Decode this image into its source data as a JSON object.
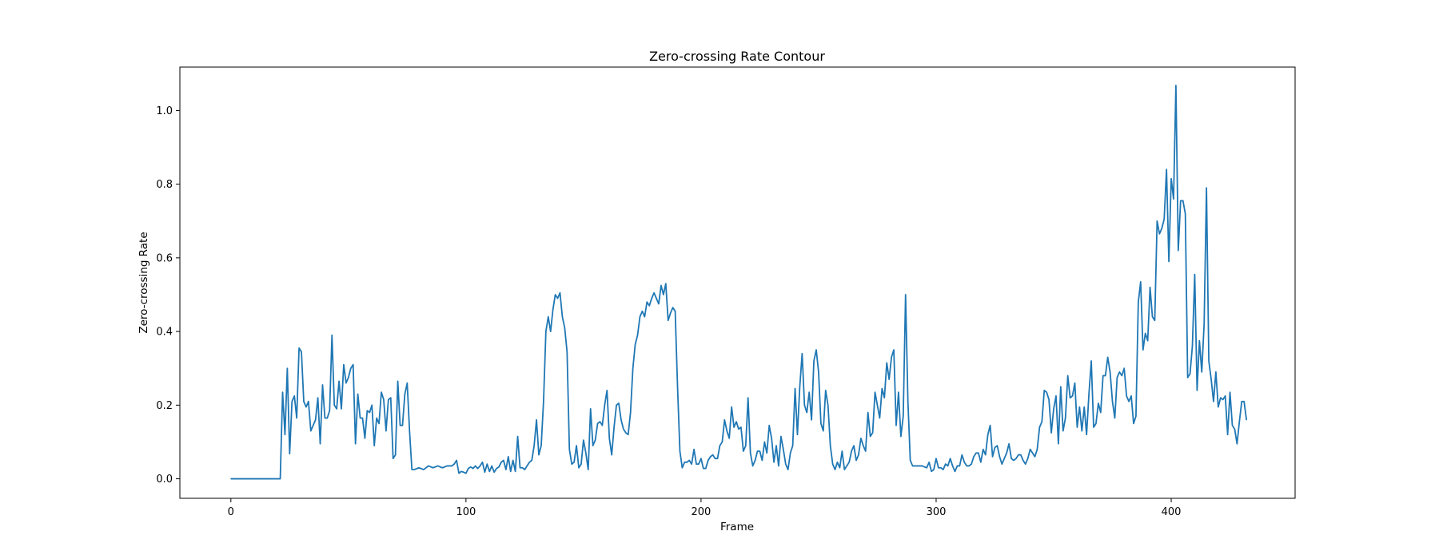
{
  "chart_data": {
    "type": "line",
    "title": "Zero-crossing Rate Contour",
    "xlabel": "Frame",
    "ylabel": "Zero-crossing Rate",
    "xlim": [
      -21.7,
      452.7
    ],
    "ylim": [
      -0.053,
      1.118
    ],
    "xticks": [
      0,
      100,
      200,
      300,
      400
    ],
    "xtick_labels": [
      "0",
      "100",
      "200",
      "300",
      "400"
    ],
    "yticks": [
      0.0,
      0.2,
      0.4,
      0.6,
      0.8,
      1.0
    ],
    "ytick_labels": [
      "0.0",
      "0.2",
      "0.4",
      "0.6",
      "0.8",
      "1.0"
    ],
    "grid": false,
    "legend": "none",
    "series": [
      {
        "color": "#1f77b4",
        "x": [
          0,
          21,
          22,
          23,
          24,
          25,
          26,
          27,
          28,
          29,
          30,
          31,
          32,
          33,
          34,
          35,
          36,
          37,
          38,
          39,
          40,
          41,
          42,
          43,
          44,
          45,
          46,
          47,
          48,
          49,
          50,
          51,
          52,
          53,
          54,
          55,
          56,
          57,
          58,
          59,
          60,
          61,
          62,
          63,
          64,
          65,
          66,
          67,
          68,
          69,
          70,
          71,
          72,
          73,
          74,
          75,
          76,
          77,
          78,
          80,
          82,
          84,
          86,
          88,
          90,
          92,
          94,
          95,
          96,
          97,
          98,
          99,
          100,
          101,
          102,
          103,
          104,
          105,
          106,
          107,
          108,
          109,
          110,
          111,
          112,
          113,
          114,
          115,
          116,
          117,
          118,
          119,
          120,
          121,
          122,
          123,
          124,
          125,
          126,
          127,
          128,
          129,
          130,
          131,
          132,
          133,
          134,
          135,
          136,
          137,
          138,
          139,
          140,
          141,
          142,
          143,
          144,
          145,
          146,
          147,
          148,
          149,
          150,
          151,
          152,
          153,
          154,
          155,
          156,
          157,
          158,
          159,
          160,
          161,
          162,
          163,
          164,
          165,
          166,
          167,
          168,
          169,
          170,
          171,
          172,
          173,
          174,
          175,
          176,
          177,
          178,
          179,
          180,
          181,
          182,
          183,
          184,
          185,
          186,
          187,
          188,
          189,
          190,
          191,
          192,
          193,
          194,
          195,
          196,
          197,
          198,
          199,
          200,
          201,
          202,
          203,
          204,
          205,
          206,
          207,
          208,
          209,
          210,
          211,
          212,
          213,
          214,
          215,
          216,
          217,
          218,
          219,
          220,
          221,
          222,
          223,
          224,
          225,
          226,
          227,
          228,
          229,
          230,
          231,
          232,
          233,
          234,
          235,
          236,
          237,
          238,
          239,
          240,
          241,
          242,
          243,
          244,
          245,
          246,
          247,
          248,
          249,
          250,
          251,
          252,
          253,
          254,
          255,
          256,
          257,
          258,
          259,
          260,
          261,
          262,
          263,
          264,
          265,
          266,
          267,
          268,
          269,
          270,
          271,
          272,
          273,
          274,
          275,
          276,
          277,
          278,
          279,
          280,
          281,
          282,
          283,
          284,
          285,
          286,
          287,
          288,
          289,
          290,
          292,
          294,
          296,
          297,
          298,
          299,
          300,
          301,
          302,
          303,
          304,
          305,
          306,
          307,
          308,
          309,
          310,
          311,
          312,
          313,
          314,
          315,
          316,
          317,
          318,
          319,
          320,
          321,
          322,
          323,
          324,
          325,
          326,
          327,
          328,
          329,
          330,
          331,
          332,
          333,
          334,
          335,
          336,
          337,
          338,
          339,
          340,
          341,
          342,
          343,
          344,
          345,
          346,
          347,
          348,
          349,
          350,
          351,
          352,
          353,
          354,
          355,
          356,
          357,
          358,
          359,
          360,
          361,
          362,
          363,
          364,
          365,
          366,
          367,
          368,
          369,
          370,
          371,
          372,
          373,
          374,
          375,
          376,
          377,
          378,
          379,
          380,
          381,
          382,
          383,
          384,
          385,
          386,
          387,
          388,
          389,
          390,
          391,
          392,
          393,
          394,
          395,
          396,
          397,
          398,
          399,
          400,
          401,
          402,
          403,
          404,
          405,
          406,
          407,
          408,
          409,
          410,
          411,
          412,
          413,
          414,
          415,
          416,
          417,
          418,
          419,
          420,
          421,
          422,
          423,
          424,
          425,
          426,
          427,
          428,
          429,
          430,
          431,
          432
        ],
        "y": [
          0.0,
          0.0,
          0.235,
          0.12,
          0.3,
          0.068,
          0.21,
          0.225,
          0.165,
          0.355,
          0.345,
          0.21,
          0.195,
          0.21,
          0.13,
          0.145,
          0.16,
          0.22,
          0.095,
          0.255,
          0.165,
          0.165,
          0.185,
          0.39,
          0.2,
          0.19,
          0.265,
          0.19,
          0.31,
          0.26,
          0.275,
          0.3,
          0.31,
          0.095,
          0.23,
          0.165,
          0.165,
          0.11,
          0.185,
          0.18,
          0.2,
          0.09,
          0.165,
          0.15,
          0.235,
          0.215,
          0.13,
          0.215,
          0.22,
          0.055,
          0.065,
          0.265,
          0.145,
          0.145,
          0.23,
          0.26,
          0.13,
          0.025,
          0.025,
          0.03,
          0.025,
          0.035,
          0.03,
          0.035,
          0.03,
          0.035,
          0.035,
          0.04,
          0.05,
          0.015,
          0.02,
          0.018,
          0.015,
          0.028,
          0.032,
          0.028,
          0.035,
          0.028,
          0.035,
          0.045,
          0.018,
          0.04,
          0.02,
          0.035,
          0.018,
          0.028,
          0.032,
          0.045,
          0.05,
          0.025,
          0.06,
          0.02,
          0.05,
          0.02,
          0.115,
          0.03,
          0.03,
          0.025,
          0.035,
          0.045,
          0.05,
          0.09,
          0.16,
          0.065,
          0.09,
          0.21,
          0.4,
          0.44,
          0.4,
          0.46,
          0.5,
          0.49,
          0.505,
          0.44,
          0.41,
          0.345,
          0.08,
          0.04,
          0.045,
          0.09,
          0.03,
          0.04,
          0.105,
          0.07,
          0.025,
          0.19,
          0.09,
          0.105,
          0.15,
          0.155,
          0.145,
          0.2,
          0.24,
          0.11,
          0.065,
          0.14,
          0.2,
          0.205,
          0.16,
          0.135,
          0.125,
          0.12,
          0.18,
          0.3,
          0.365,
          0.39,
          0.44,
          0.455,
          0.44,
          0.48,
          0.47,
          0.49,
          0.505,
          0.49,
          0.475,
          0.525,
          0.5,
          0.53,
          0.43,
          0.45,
          0.465,
          0.455,
          0.25,
          0.075,
          0.03,
          0.045,
          0.045,
          0.05,
          0.04,
          0.08,
          0.04,
          0.04,
          0.055,
          0.028,
          0.028,
          0.05,
          0.06,
          0.065,
          0.055,
          0.055,
          0.09,
          0.1,
          0.16,
          0.13,
          0.11,
          0.195,
          0.14,
          0.155,
          0.135,
          0.14,
          0.075,
          0.09,
          0.22,
          0.07,
          0.035,
          0.05,
          0.075,
          0.075,
          0.05,
          0.1,
          0.07,
          0.145,
          0.11,
          0.045,
          0.09,
          0.035,
          0.115,
          0.08,
          0.04,
          0.025,
          0.07,
          0.09,
          0.245,
          0.12,
          0.25,
          0.34,
          0.2,
          0.18,
          0.235,
          0.16,
          0.32,
          0.35,
          0.29,
          0.15,
          0.13,
          0.24,
          0.2,
          0.09,
          0.04,
          0.025,
          0.045,
          0.03,
          0.075,
          0.025,
          0.035,
          0.045,
          0.075,
          0.09,
          0.05,
          0.065,
          0.11,
          0.09,
          0.075,
          0.18,
          0.115,
          0.125,
          0.235,
          0.2,
          0.165,
          0.245,
          0.22,
          0.315,
          0.27,
          0.33,
          0.35,
          0.145,
          0.235,
          0.115,
          0.17,
          0.5,
          0.21,
          0.05,
          0.035,
          0.035,
          0.035,
          0.03,
          0.045,
          0.02,
          0.025,
          0.055,
          0.03,
          0.03,
          0.025,
          0.04,
          0.035,
          0.055,
          0.035,
          0.02,
          0.035,
          0.035,
          0.065,
          0.045,
          0.035,
          0.035,
          0.04,
          0.06,
          0.07,
          0.07,
          0.045,
          0.08,
          0.065,
          0.12,
          0.145,
          0.06,
          0.085,
          0.09,
          0.06,
          0.04,
          0.055,
          0.07,
          0.095,
          0.055,
          0.05,
          0.055,
          0.065,
          0.065,
          0.05,
          0.04,
          0.055,
          0.08,
          0.07,
          0.06,
          0.08,
          0.14,
          0.155,
          0.24,
          0.235,
          0.215,
          0.125,
          0.19,
          0.225,
          0.095,
          0.25,
          0.13,
          0.165,
          0.28,
          0.22,
          0.225,
          0.26,
          0.14,
          0.195,
          0.13,
          0.195,
          0.12,
          0.23,
          0.32,
          0.14,
          0.15,
          0.205,
          0.18,
          0.28,
          0.28,
          0.33,
          0.29,
          0.21,
          0.165,
          0.275,
          0.29,
          0.28,
          0.3,
          0.225,
          0.21,
          0.225,
          0.15,
          0.17,
          0.48,
          0.535,
          0.35,
          0.395,
          0.375,
          0.52,
          0.44,
          0.43,
          0.7,
          0.665,
          0.68,
          0.705,
          0.84,
          0.59,
          0.815,
          0.76,
          1.068,
          0.62,
          0.755,
          0.755,
          0.72,
          0.275,
          0.285,
          0.36,
          0.555,
          0.24,
          0.375,
          0.29,
          0.42,
          0.79,
          0.32,
          0.27,
          0.21,
          0.29,
          0.195,
          0.22,
          0.215,
          0.225,
          0.12,
          0.235,
          0.145,
          0.135,
          0.095,
          0.155,
          0.21,
          0.21,
          0.16
        ]
      }
    ]
  }
}
